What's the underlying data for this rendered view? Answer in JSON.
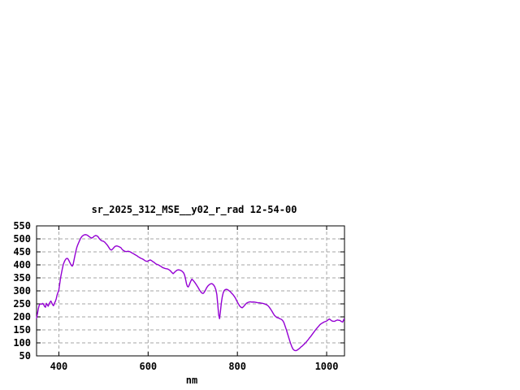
{
  "chart_data": {
    "type": "line",
    "title": "sr_2025_312_MSE__y02_r_rad 12-54-00",
    "xlabel": "nm",
    "ylabel": "",
    "xlim": [
      350,
      1040
    ],
    "ylim": [
      50,
      550
    ],
    "x_ticks": [
      400,
      600,
      800,
      1000
    ],
    "y_ticks": [
      50,
      100,
      150,
      200,
      250,
      300,
      350,
      400,
      450,
      500,
      550
    ],
    "grid": true,
    "legend": "none",
    "colors": {
      "line": "#9400d3",
      "grid": "#a6a6a6",
      "axis": "#000000",
      "background": "#ffffff"
    },
    "series": [
      {
        "name": "sr_2025_312_MSE__y02_r_rad",
        "color": "#9400d3",
        "points": [
          [
            350,
            195
          ],
          [
            352,
            212
          ],
          [
            354,
            232
          ],
          [
            356,
            245
          ],
          [
            358,
            249
          ],
          [
            360,
            250
          ],
          [
            362,
            249
          ],
          [
            364,
            252
          ],
          [
            366,
            247
          ],
          [
            368,
            240
          ],
          [
            370,
            237
          ],
          [
            372,
            252
          ],
          [
            374,
            247
          ],
          [
            376,
            241
          ],
          [
            378,
            249
          ],
          [
            380,
            256
          ],
          [
            382,
            261
          ],
          [
            384,
            254
          ],
          [
            386,
            247
          ],
          [
            388,
            243
          ],
          [
            390,
            252
          ],
          [
            392,
            259
          ],
          [
            394,
            269
          ],
          [
            396,
            284
          ],
          [
            398,
            294
          ],
          [
            400,
            304
          ],
          [
            402,
            328
          ],
          [
            404,
            352
          ],
          [
            406,
            370
          ],
          [
            408,
            387
          ],
          [
            410,
            402
          ],
          [
            412,
            411
          ],
          [
            414,
            418
          ],
          [
            416,
            423
          ],
          [
            418,
            425
          ],
          [
            420,
            424
          ],
          [
            422,
            418
          ],
          [
            424,
            411
          ],
          [
            426,
            404
          ],
          [
            428,
            398
          ],
          [
            430,
            395
          ],
          [
            432,
            402
          ],
          [
            434,
            419
          ],
          [
            436,
            436
          ],
          [
            438,
            452
          ],
          [
            440,
            466
          ],
          [
            442,
            476
          ],
          [
            444,
            484
          ],
          [
            446,
            492
          ],
          [
            449,
            503
          ],
          [
            452,
            510
          ],
          [
            455,
            514
          ],
          [
            458,
            516
          ],
          [
            461,
            516
          ],
          [
            464,
            514
          ],
          [
            467,
            510
          ],
          [
            470,
            506
          ],
          [
            473,
            503
          ],
          [
            476,
            505
          ],
          [
            479,
            510
          ],
          [
            482,
            513
          ],
          [
            485,
            512
          ],
          [
            488,
            508
          ],
          [
            491,
            500
          ],
          [
            494,
            495
          ],
          [
            497,
            492
          ],
          [
            500,
            491
          ],
          [
            503,
            487
          ],
          [
            506,
            481
          ],
          [
            509,
            475
          ],
          [
            512,
            467
          ],
          [
            515,
            459
          ],
          [
            518,
            457
          ],
          [
            521,
            462
          ],
          [
            524,
            468
          ],
          [
            527,
            472
          ],
          [
            530,
            473
          ],
          [
            533,
            471
          ],
          [
            536,
            469
          ],
          [
            539,
            466
          ],
          [
            542,
            459
          ],
          [
            545,
            455
          ],
          [
            548,
            452
          ],
          [
            551,
            451
          ],
          [
            554,
            452
          ],
          [
            557,
            452
          ],
          [
            560,
            450
          ],
          [
            563,
            447
          ],
          [
            566,
            444
          ],
          [
            569,
            441
          ],
          [
            572,
            438
          ],
          [
            575,
            435
          ],
          [
            578,
            431
          ],
          [
            581,
            428
          ],
          [
            584,
            425
          ],
          [
            587,
            423
          ],
          [
            590,
            420
          ],
          [
            593,
            416
          ],
          [
            596,
            414
          ],
          [
            599,
            414
          ],
          [
            602,
            417
          ],
          [
            605,
            419
          ],
          [
            608,
            416
          ],
          [
            611,
            412
          ],
          [
            614,
            409
          ],
          [
            617,
            404
          ],
          [
            620,
            402
          ],
          [
            623,
            400
          ],
          [
            626,
            397
          ],
          [
            629,
            394
          ],
          [
            632,
            390
          ],
          [
            635,
            388
          ],
          [
            638,
            386
          ],
          [
            641,
            385
          ],
          [
            644,
            384
          ],
          [
            647,
            381
          ],
          [
            650,
            377
          ],
          [
            653,
            371
          ],
          [
            656,
            366
          ],
          [
            659,
            371
          ],
          [
            662,
            376
          ],
          [
            665,
            380
          ],
          [
            668,
            381
          ],
          [
            671,
            380
          ],
          [
            674,
            378
          ],
          [
            677,
            374
          ],
          [
            680,
            368
          ],
          [
            682,
            359
          ],
          [
            684,
            344
          ],
          [
            686,
            327
          ],
          [
            688,
            317
          ],
          [
            690,
            315
          ],
          [
            692,
            322
          ],
          [
            694,
            331
          ],
          [
            696,
            339
          ],
          [
            698,
            345
          ],
          [
            700,
            342
          ],
          [
            703,
            336
          ],
          [
            706,
            329
          ],
          [
            709,
            321
          ],
          [
            712,
            313
          ],
          [
            715,
            304
          ],
          [
            718,
            296
          ],
          [
            721,
            291
          ],
          [
            723,
            290
          ],
          [
            725,
            293
          ],
          [
            728,
            301
          ],
          [
            731,
            312
          ],
          [
            734,
            319
          ],
          [
            737,
            324
          ],
          [
            740,
            327
          ],
          [
            743,
            328
          ],
          [
            746,
            324
          ],
          [
            749,
            317
          ],
          [
            752,
            303
          ],
          [
            754,
            285
          ],
          [
            756,
            248
          ],
          [
            758,
            208
          ],
          [
            760,
            193
          ],
          [
            762,
            221
          ],
          [
            764,
            253
          ],
          [
            766,
            276
          ],
          [
            768,
            291
          ],
          [
            770,
            300
          ],
          [
            772,
            304
          ],
          [
            775,
            306
          ],
          [
            778,
            305
          ],
          [
            781,
            301
          ],
          [
            784,
            297
          ],
          [
            787,
            291
          ],
          [
            790,
            286
          ],
          [
            793,
            279
          ],
          [
            796,
            271
          ],
          [
            799,
            260
          ],
          [
            802,
            251
          ],
          [
            805,
            242
          ],
          [
            808,
            237
          ],
          [
            811,
            235
          ],
          [
            814,
            240
          ],
          [
            817,
            246
          ],
          [
            820,
            252
          ],
          [
            823,
            255
          ],
          [
            826,
            257
          ],
          [
            829,
            258
          ],
          [
            832,
            257
          ],
          [
            835,
            257
          ],
          [
            838,
            257
          ],
          [
            841,
            256
          ],
          [
            844,
            255
          ],
          [
            847,
            254
          ],
          [
            850,
            254
          ],
          [
            853,
            253
          ],
          [
            856,
            252
          ],
          [
            859,
            251
          ],
          [
            862,
            249
          ],
          [
            865,
            247
          ],
          [
            868,
            244
          ],
          [
            871,
            238
          ],
          [
            874,
            231
          ],
          [
            877,
            223
          ],
          [
            880,
            214
          ],
          [
            883,
            206
          ],
          [
            886,
            201
          ],
          [
            889,
            197
          ],
          [
            892,
            196
          ],
          [
            895,
            193
          ],
          [
            898,
            191
          ],
          [
            901,
            187
          ],
          [
            904,
            179
          ],
          [
            907,
            164
          ],
          [
            910,
            149
          ],
          [
            913,
            132
          ],
          [
            916,
            115
          ],
          [
            919,
            99
          ],
          [
            922,
            85
          ],
          [
            925,
            75
          ],
          [
            928,
            71
          ],
          [
            931,
            70
          ],
          [
            934,
            72
          ],
          [
            937,
            76
          ],
          [
            940,
            80
          ],
          [
            943,
            85
          ],
          [
            946,
            89
          ],
          [
            949,
            94
          ],
          [
            952,
            99
          ],
          [
            955,
            105
          ],
          [
            958,
            111
          ],
          [
            961,
            118
          ],
          [
            964,
            124
          ],
          [
            967,
            131
          ],
          [
            970,
            138
          ],
          [
            973,
            145
          ],
          [
            976,
            152
          ],
          [
            979,
            158
          ],
          [
            982,
            164
          ],
          [
            985,
            170
          ],
          [
            988,
            174
          ],
          [
            991,
            177
          ],
          [
            994,
            180
          ],
          [
            997,
            182
          ],
          [
            1000,
            184
          ],
          [
            1003,
            188
          ],
          [
            1006,
            192
          ],
          [
            1009,
            188
          ],
          [
            1012,
            184
          ],
          [
            1015,
            183
          ],
          [
            1018,
            183
          ],
          [
            1021,
            186
          ],
          [
            1024,
            188
          ],
          [
            1027,
            187
          ],
          [
            1030,
            186
          ],
          [
            1033,
            182
          ],
          [
            1036,
            180
          ],
          [
            1039,
            192
          ]
        ]
      }
    ]
  }
}
